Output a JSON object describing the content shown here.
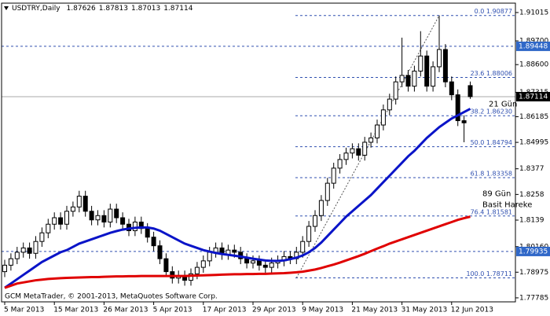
{
  "chart_data": {
    "type": "candlestick",
    "title": "USDTRY,Daily",
    "footer": "GCM MetaTrader, © 2001-2013, MetaQuotes Software Corp.",
    "categories": [
      "5 Mar 2013",
      null,
      null,
      null,
      null,
      null,
      null,
      null,
      "15 Mar 2013",
      null,
      null,
      null,
      null,
      null,
      null,
      null,
      "26 Mar 2013",
      null,
      null,
      null,
      null,
      null,
      null,
      null,
      "5 Apr 2013",
      null,
      null,
      null,
      null,
      null,
      null,
      null,
      "17 Apr 2013",
      null,
      null,
      null,
      null,
      null,
      null,
      null,
      "29 Apr 2013",
      null,
      null,
      null,
      null,
      null,
      null,
      null,
      "9 May 2013",
      null,
      null,
      null,
      null,
      null,
      null,
      null,
      "21 May 2013",
      null,
      null,
      null,
      null,
      null,
      null,
      null,
      "31 May 2013",
      null,
      null,
      null,
      null,
      null,
      null,
      null,
      "12 Jun 2013",
      null,
      null,
      null
    ],
    "open": [
      1.79,
      1.793,
      1.796,
      1.799,
      1.801,
      1.7985,
      1.804,
      1.808,
      1.812,
      1.815,
      1.812,
      1.818,
      1.82,
      1.825,
      1.818,
      1.814,
      1.816,
      1.813,
      1.819,
      1.815,
      1.812,
      1.809,
      1.813,
      1.81,
      1.806,
      1.802,
      1.796,
      1.79,
      1.787,
      1.788,
      1.786,
      1.789,
      1.792,
      1.795,
      1.799,
      1.801,
      1.798,
      1.8,
      1.799,
      1.796,
      1.794,
      1.795,
      1.793,
      1.792,
      1.794,
      1.795,
      1.797,
      1.796,
      1.799,
      1.804,
      1.811,
      1.816,
      1.823,
      1.831,
      1.838,
      1.842,
      1.845,
      1.847,
      1.844,
      1.85,
      1.852,
      1.858,
      1.865,
      1.87,
      1.878,
      1.881,
      1.876,
      1.883,
      1.89,
      1.876,
      1.885,
      1.893,
      1.878,
      1.872,
      1.86,
      1.87626
    ],
    "high": [
      1.7955,
      1.7985,
      1.8015,
      1.8035,
      1.8035,
      1.8065,
      1.8105,
      1.8145,
      1.8175,
      1.8175,
      1.8205,
      1.8225,
      1.8275,
      1.8275,
      1.8205,
      1.8185,
      1.8185,
      1.8215,
      1.8215,
      1.8175,
      1.8145,
      1.8155,
      1.8155,
      1.8125,
      1.8085,
      1.8045,
      1.7985,
      1.7925,
      1.7905,
      1.7905,
      1.7915,
      1.7945,
      1.7975,
      1.8015,
      1.8035,
      1.8035,
      1.8025,
      1.8025,
      1.8015,
      1.7985,
      1.7975,
      1.7975,
      1.7955,
      1.7965,
      1.7975,
      1.7995,
      1.7995,
      1.8015,
      1.8065,
      1.8135,
      1.8185,
      1.8255,
      1.8335,
      1.8405,
      1.8445,
      1.8475,
      1.8495,
      1.8495,
      1.8525,
      1.8545,
      1.8605,
      1.8675,
      1.8725,
      1.8805,
      1.8985,
      1.8835,
      1.8855,
      1.9015,
      1.8925,
      1.8875,
      1.9088,
      1.8955,
      1.8805,
      1.8745,
      1.8625,
      1.87813
    ],
    "low": [
      1.7875,
      1.7905,
      1.7935,
      1.7965,
      1.796,
      1.796,
      1.8015,
      1.8055,
      1.8095,
      1.8095,
      1.8095,
      1.8155,
      1.8175,
      1.8155,
      1.8115,
      1.8115,
      1.8105,
      1.8105,
      1.8125,
      1.8095,
      1.8065,
      1.8065,
      1.8075,
      1.8035,
      1.7995,
      1.7935,
      1.7875,
      1.7845,
      1.7845,
      1.7835,
      1.7835,
      1.7865,
      1.7895,
      1.7925,
      1.7965,
      1.7955,
      1.7955,
      1.7965,
      1.7935,
      1.7915,
      1.7915,
      1.7905,
      1.7895,
      1.7895,
      1.7915,
      1.7925,
      1.7935,
      1.7935,
      1.7965,
      1.8015,
      1.8085,
      1.8135,
      1.8205,
      1.8285,
      1.8355,
      1.8395,
      1.8425,
      1.8415,
      1.8415,
      1.8475,
      1.8495,
      1.8555,
      1.8625,
      1.8675,
      1.8755,
      1.8735,
      1.8735,
      1.8805,
      1.8735,
      1.8735,
      1.8825,
      1.8755,
      1.8695,
      1.8575,
      1.85,
      1.87013
    ],
    "close": [
      1.793,
      1.796,
      1.799,
      1.801,
      1.7985,
      1.804,
      1.808,
      1.812,
      1.815,
      1.812,
      1.818,
      1.82,
      1.825,
      1.818,
      1.814,
      1.816,
      1.813,
      1.819,
      1.815,
      1.812,
      1.809,
      1.813,
      1.81,
      1.806,
      1.802,
      1.796,
      1.79,
      1.787,
      1.788,
      1.786,
      1.789,
      1.792,
      1.795,
      1.799,
      1.801,
      1.798,
      1.8,
      1.799,
      1.796,
      1.794,
      1.795,
      1.793,
      1.792,
      1.794,
      1.795,
      1.797,
      1.796,
      1.799,
      1.804,
      1.811,
      1.816,
      1.823,
      1.831,
      1.838,
      1.842,
      1.845,
      1.847,
      1.844,
      1.85,
      1.852,
      1.858,
      1.865,
      1.87,
      1.878,
      1.881,
      1.876,
      1.883,
      1.89,
      1.876,
      1.885,
      1.893,
      1.878,
      1.872,
      1.86,
      1.859,
      1.87114
    ],
    "series": [
      {
        "name": "21 Gün",
        "color": "#0a14c8",
        "values": [
          1.7825,
          1.7845,
          1.7865,
          1.7885,
          1.7905,
          1.7925,
          1.7945,
          1.796,
          1.7975,
          1.799,
          1.8,
          1.8015,
          1.803,
          1.804,
          1.805,
          1.806,
          1.807,
          1.808,
          1.8088,
          1.8095,
          1.81,
          1.8103,
          1.8105,
          1.8105,
          1.81,
          1.809,
          1.8075,
          1.806,
          1.8045,
          1.803,
          1.802,
          1.801,
          1.8,
          1.7993,
          1.7987,
          1.7982,
          1.7978,
          1.7974,
          1.797,
          1.7965,
          1.796,
          1.7956,
          1.7952,
          1.795,
          1.795,
          1.7952,
          1.7958,
          1.7965,
          1.7975,
          1.799,
          1.801,
          1.8035,
          1.8065,
          1.8095,
          1.8125,
          1.8155,
          1.818,
          1.8205,
          1.823,
          1.8255,
          1.8285,
          1.8315,
          1.8345,
          1.8375,
          1.8405,
          1.8435,
          1.846,
          1.849,
          1.852,
          1.8545,
          1.857,
          1.859,
          1.861,
          1.8625,
          1.864,
          1.8655
        ]
      },
      {
        "name": "89 Gün",
        "color": "#e00000",
        "values": [
          1.7825,
          1.7835,
          1.7845,
          1.785,
          1.7855,
          1.786,
          1.7863,
          1.7866,
          1.7868,
          1.787,
          1.7871,
          1.7872,
          1.7873,
          1.7874,
          1.7875,
          1.7875,
          1.7876,
          1.7877,
          1.7878,
          1.7878,
          1.7879,
          1.7879,
          1.788,
          1.788,
          1.788,
          1.788,
          1.788,
          1.788,
          1.788,
          1.788,
          1.7881,
          1.7882,
          1.7883,
          1.7884,
          1.7885,
          1.7886,
          1.7887,
          1.7888,
          1.7888,
          1.7889,
          1.7889,
          1.789,
          1.789,
          1.7891,
          1.7892,
          1.7893,
          1.7895,
          1.7897,
          1.79,
          1.7905,
          1.791,
          1.7917,
          1.7925,
          1.7933,
          1.7942,
          1.7952,
          1.7962,
          1.7972,
          1.7983,
          1.7995,
          1.8007,
          1.8018,
          1.803,
          1.804,
          1.805,
          1.806,
          1.807,
          1.808,
          1.809,
          1.81,
          1.811,
          1.812,
          1.813,
          1.814,
          1.8148,
          1.8155
        ]
      }
    ],
    "annotations": [
      "Basit Hareke"
    ],
    "fib_levels": [
      {
        "value": 1.90877,
        "label": "0.0 1.90877"
      },
      {
        "value": 1.88006,
        "label": "23.6 1.88006"
      },
      {
        "value": 1.8623,
        "label": "38.2 1.86230"
      },
      {
        "value": 1.84794,
        "label": "50.0 1.84794"
      },
      {
        "value": 1.83358,
        "label": "61.8 1.83358"
      },
      {
        "value": 1.81581,
        "label": "76.4 1.81581"
      },
      {
        "value": 1.78711,
        "label": "100.0 1.78711"
      }
    ],
    "levels": [
      1.89448,
      1.79935
    ],
    "ylim": [
      1.776,
      1.9145
    ],
    "yticks": [
      1.91015,
      {
        "value": 1.897,
        "label": "1.89700"
      },
      {
        "value": 1.886,
        "label": "1.88600"
      },
      1.87315,
      1.86185,
      1.84995,
      1.8377,
      1.8258,
      1.8139,
      {
        "value": 1.8016,
        "label": "1.80160"
      },
      1.78975,
      1.77785
    ]
  }
}
